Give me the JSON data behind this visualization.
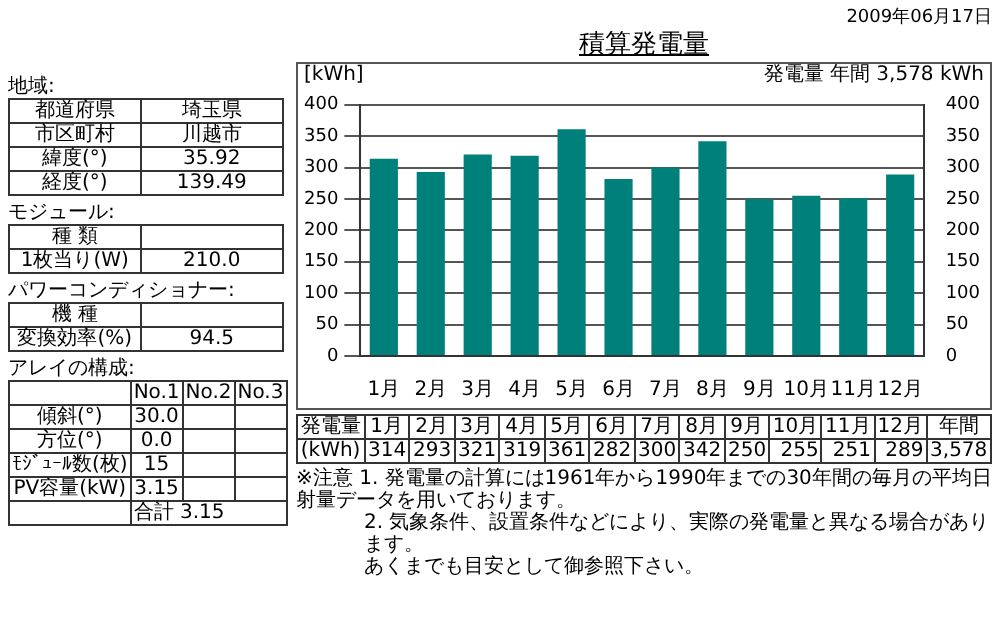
{
  "chart_data": [
    {
      "type": "other",
      "annotations": [
        "地域:",
        "都道府県",
        "埼玉県",
        "市区町村",
        "川越市",
        "緯度(°)",
        "35.92",
        "経度(°)",
        "139.49",
        "モジュール:",
        "種 類",
        "1枚当り(W)",
        "210.0",
        "パワーコンディショナー:",
        "機 種",
        "変換効率(%)",
        "94.5",
        "アレイの構成:",
        "No.1",
        "No.2",
        "No.3",
        "傾斜(°)",
        "30.0",
        "方位(°)",
        "0.0",
        "ﾓｼﾞｭｰﾙ数(枚)",
        "15",
        "PV容量(kW)",
        "3.15",
        "合計",
        "3.15"
      ]
    },
    {
      "type": "bar",
      "title": "積算発電量",
      "ylabel": "[kWh]",
      "categories": [
        "1月",
        "2月",
        "3月",
        "4月",
        "5月",
        "6月",
        "7月",
        "8月",
        "9月",
        "10月",
        "11月",
        "12月"
      ],
      "values": [
        314,
        293,
        321,
        319,
        361,
        282,
        300,
        342,
        250,
        255,
        251,
        289
      ],
      "color": "#00807a",
      "ylim": [
        0,
        400
      ],
      "yticks": [
        0,
        50,
        100,
        150,
        200,
        250,
        300,
        350,
        400
      ],
      "y2lim": [
        0,
        400
      ],
      "y2ticks": [
        0,
        50,
        100,
        150,
        200,
        250,
        300,
        350,
        400
      ],
      "grid": "y",
      "data_labels": true,
      "annotations": [
        "2009年06月17日",
        "発電量 年間 3,578 kWh",
        "発電量",
        "(kWh)",
        "年間",
        "3,578",
        "※注意",
        "1. 発電量の計算には1961年から1990年までの30年間の毎月の平均日射量データを用いております。",
        "2. 気象条件、設置条件などにより、実際の発電量と異なる場合があります。",
        "あくまでも目安として御参照下さい。"
      ]
    }
  ]
}
